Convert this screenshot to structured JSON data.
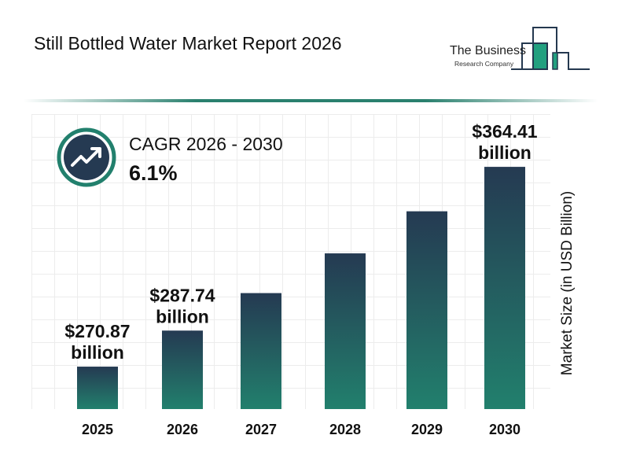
{
  "title": "Still Bottled Water Market Report 2026",
  "logo": {
    "line1": "The Business",
    "line2": "Research Company"
  },
  "cagr": {
    "label": "CAGR 2026 - 2030",
    "value": "6.1%",
    "icon": "trend-up-arrow-icon"
  },
  "colors": {
    "bar_top": "#253a52",
    "bar_bottom": "#22806d",
    "accent": "#2a806e"
  },
  "chart_data": {
    "type": "bar",
    "categories": [
      "2025",
      "2026",
      "2027",
      "2028",
      "2029",
      "2030"
    ],
    "values": [
      270.87,
      287.74,
      305.3,
      323.9,
      343.6,
      364.41
    ],
    "data_labels": [
      [
        "$270.87",
        "billion"
      ],
      [
        "$287.74",
        "billion"
      ],
      null,
      null,
      null,
      [
        "$364.41",
        "billion"
      ]
    ],
    "xlabel": "",
    "ylabel": "Market Size (in USD Billion)",
    "grid": true
  }
}
